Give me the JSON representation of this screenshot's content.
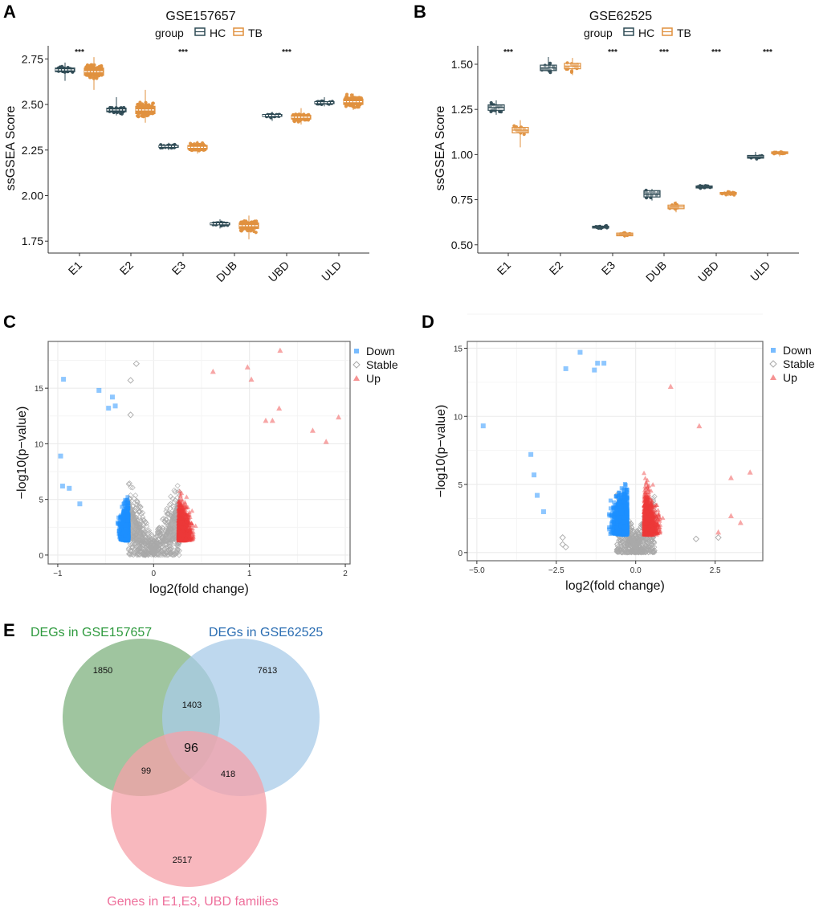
{
  "panels": {
    "A": "A",
    "B": "B",
    "C": "C",
    "D": "D",
    "E": "E"
  },
  "colors": {
    "HC": "#2f4b55",
    "TB": "#e0913f",
    "Down": "#1e90ff",
    "Stable": "#a9a9a9",
    "Up": "#ee3a3a",
    "venn_green": "#7fb27f",
    "venn_blue": "#a8cbe8",
    "venn_pink": "#f5a0a8",
    "venn_green_label": "#2e9a3e",
    "venn_blue_label": "#2a6db2",
    "venn_pink_label": "#ee6f9b"
  },
  "chart_data": [
    {
      "id": "A",
      "type": "box",
      "title": "GSE157657",
      "legend": {
        "title": "group",
        "entries": [
          "HC",
          "TB"
        ],
        "placement": "top"
      },
      "xlabel": "",
      "ylabel": "ssGSEA Score",
      "categories": [
        "E1",
        "E2",
        "E3",
        "DUB",
        "UBD",
        "ULD"
      ],
      "yticks": [
        "1.75",
        "2.00",
        "2.25",
        "2.50",
        "2.75"
      ],
      "ylim": [
        1.72,
        2.8
      ],
      "significance": [
        "***",
        "",
        "***",
        "",
        "***",
        ""
      ],
      "series": [
        {
          "name": "HC",
          "median": [
            2.69,
            2.47,
            2.27,
            1.845,
            2.44,
            2.51
          ],
          "q1": [
            2.68,
            2.46,
            2.265,
            1.84,
            2.435,
            2.505
          ],
          "q3": [
            2.7,
            2.48,
            2.275,
            1.85,
            2.445,
            2.515
          ],
          "min": [
            2.63,
            2.44,
            2.25,
            1.82,
            2.41,
            2.49
          ],
          "max": [
            2.73,
            2.54,
            2.29,
            1.87,
            2.46,
            2.54
          ]
        },
        {
          "name": "TB",
          "median": [
            2.68,
            2.47,
            2.265,
            1.835,
            2.43,
            2.515
          ],
          "q1": [
            2.66,
            2.45,
            2.255,
            1.82,
            2.42,
            2.5
          ],
          "q3": [
            2.7,
            2.49,
            2.275,
            1.85,
            2.44,
            2.53
          ],
          "min": [
            2.58,
            2.4,
            2.23,
            1.76,
            2.39,
            2.47
          ],
          "max": [
            2.76,
            2.58,
            2.3,
            1.89,
            2.48,
            2.56
          ]
        }
      ]
    },
    {
      "id": "B",
      "type": "box",
      "title": "GSE62525",
      "legend": {
        "title": "group",
        "entries": [
          "HC",
          "TB"
        ],
        "placement": "top"
      },
      "xlabel": "",
      "ylabel": "ssGSEA Score",
      "categories": [
        "E1",
        "E2",
        "E3",
        "DUB",
        "UBD",
        "ULD"
      ],
      "yticks": [
        "0.50",
        "0.75",
        "1.00",
        "1.25",
        "1.50"
      ],
      "ylim": [
        0.49,
        1.58
      ],
      "significance": [
        "***",
        "",
        "***",
        "***",
        "***",
        "***"
      ],
      "series": [
        {
          "name": "HC",
          "median": [
            1.26,
            1.48,
            0.598,
            0.78,
            0.82,
            0.985
          ],
          "q1": [
            1.245,
            1.465,
            0.593,
            0.765,
            0.815,
            0.98
          ],
          "q3": [
            1.275,
            1.495,
            0.603,
            0.8,
            0.826,
            0.995
          ],
          "min": [
            1.22,
            1.455,
            0.588,
            0.745,
            0.81,
            0.975
          ],
          "max": [
            1.3,
            1.54,
            0.61,
            0.81,
            0.835,
            1.015
          ]
        },
        {
          "name": "TB",
          "median": [
            1.135,
            1.49,
            0.557,
            0.71,
            0.785,
            1.01
          ],
          "q1": [
            1.12,
            1.475,
            0.55,
            0.7,
            0.78,
            1.005
          ],
          "q3": [
            1.15,
            1.505,
            0.565,
            0.72,
            0.79,
            1.015
          ],
          "min": [
            1.04,
            1.44,
            0.54,
            0.68,
            0.77,
            0.99
          ],
          "max": [
            1.19,
            1.535,
            0.575,
            0.74,
            0.8,
            1.02
          ]
        }
      ]
    },
    {
      "id": "C",
      "type": "scatter",
      "title": "",
      "xlabel": "log2(fold change)",
      "ylabel": "−log10(p−value)",
      "xticks": [
        "−1",
        "0",
        "1",
        "2"
      ],
      "xtick_values": [
        -1,
        0,
        1,
        2
      ],
      "yticks": [
        "0",
        "5",
        "10",
        "15"
      ],
      "ytick_values": [
        0,
        5,
        10,
        15
      ],
      "xlim": [
        -1.1,
        2.05
      ],
      "ylim": [
        -0.8,
        19.2
      ],
      "legend": {
        "entries": [
          "Down",
          "Stable",
          "Up"
        ],
        "placement": "right"
      },
      "thresholds": {
        "down_x": -0.26,
        "up_x": 0.26
      },
      "highlight_points": {
        "Down": [
          [
            -0.94,
            15.8
          ],
          [
            -0.57,
            14.8
          ],
          [
            -0.43,
            14.2
          ],
          [
            -0.47,
            13.2
          ],
          [
            -0.4,
            13.4
          ],
          [
            -0.97,
            8.9
          ],
          [
            -0.95,
            6.2
          ],
          [
            -0.88,
            6.0
          ],
          [
            -0.77,
            4.6
          ]
        ],
        "Stable": [
          [
            -0.18,
            17.2
          ],
          [
            -0.24,
            15.7
          ],
          [
            -0.24,
            12.6
          ]
        ],
        "Up": [
          [
            1.32,
            18.4
          ],
          [
            0.98,
            16.9
          ],
          [
            0.62,
            16.5
          ],
          [
            1.02,
            15.8
          ],
          [
            1.8,
            10.2
          ],
          [
            1.93,
            12.4
          ],
          [
            1.66,
            11.2
          ],
          [
            1.31,
            13.2
          ],
          [
            1.24,
            12.1
          ],
          [
            1.17,
            12.1
          ]
        ]
      }
    },
    {
      "id": "D",
      "type": "scatter",
      "title": "",
      "xlabel": "log2(fold change)",
      "ylabel": "−log10(p−value)",
      "xticks": [
        "−5.0",
        "−2.5",
        "0.0",
        "2.5"
      ],
      "xtick_values": [
        -5,
        -2.5,
        0,
        2.5
      ],
      "yticks": [
        "0",
        "5",
        "10",
        "15"
      ],
      "ytick_values": [
        0,
        5,
        10,
        15
      ],
      "xlim": [
        -5.3,
        4.0
      ],
      "ylim": [
        -0.6,
        15.5
      ],
      "legend": {
        "entries": [
          "Down",
          "Stable",
          "Up"
        ],
        "placement": "right"
      },
      "thresholds": {
        "down_x": -0.26,
        "up_x": 0.26
      },
      "highlight_points": {
        "Down": [
          [
            -4.8,
            9.3
          ],
          [
            -1.75,
            14.7
          ],
          [
            -1.2,
            13.9
          ],
          [
            -1.0,
            13.9
          ],
          [
            -2.2,
            13.5
          ],
          [
            -1.3,
            13.4
          ],
          [
            -3.3,
            7.2
          ],
          [
            -3.2,
            5.7
          ],
          [
            -2.9,
            3.0
          ],
          [
            -3.1,
            4.2
          ]
        ],
        "Stable": [
          [
            -2.3,
            1.1
          ],
          [
            -2.3,
            0.6
          ],
          [
            -2.2,
            0.4
          ],
          [
            2.6,
            1.1
          ],
          [
            1.9,
            1.0
          ]
        ],
        "Up": [
          [
            1.1,
            12.2
          ],
          [
            3.6,
            5.9
          ],
          [
            3.0,
            5.5
          ],
          [
            3.3,
            2.2
          ],
          [
            3.0,
            2.7
          ],
          [
            2.6,
            1.5
          ],
          [
            2.0,
            9.3
          ]
        ]
      }
    },
    {
      "id": "E",
      "type": "venn",
      "sets": [
        {
          "label": "DEGs in GSE157657",
          "color": "#7fb27f"
        },
        {
          "label": "DEGs in GSE62525",
          "color": "#a8cbe8"
        },
        {
          "label": "Genes in E1,E3, UBD families",
          "color": "#f5a0a8"
        }
      ],
      "regions": {
        "only_GSE157657": 1850,
        "only_GSE62525": 7613,
        "only_families": 2517,
        "GSE157657_and_GSE62525": 1403,
        "GSE157657_and_families": 99,
        "GSE62525_and_families": 418,
        "all_three": 96
      }
    }
  ]
}
